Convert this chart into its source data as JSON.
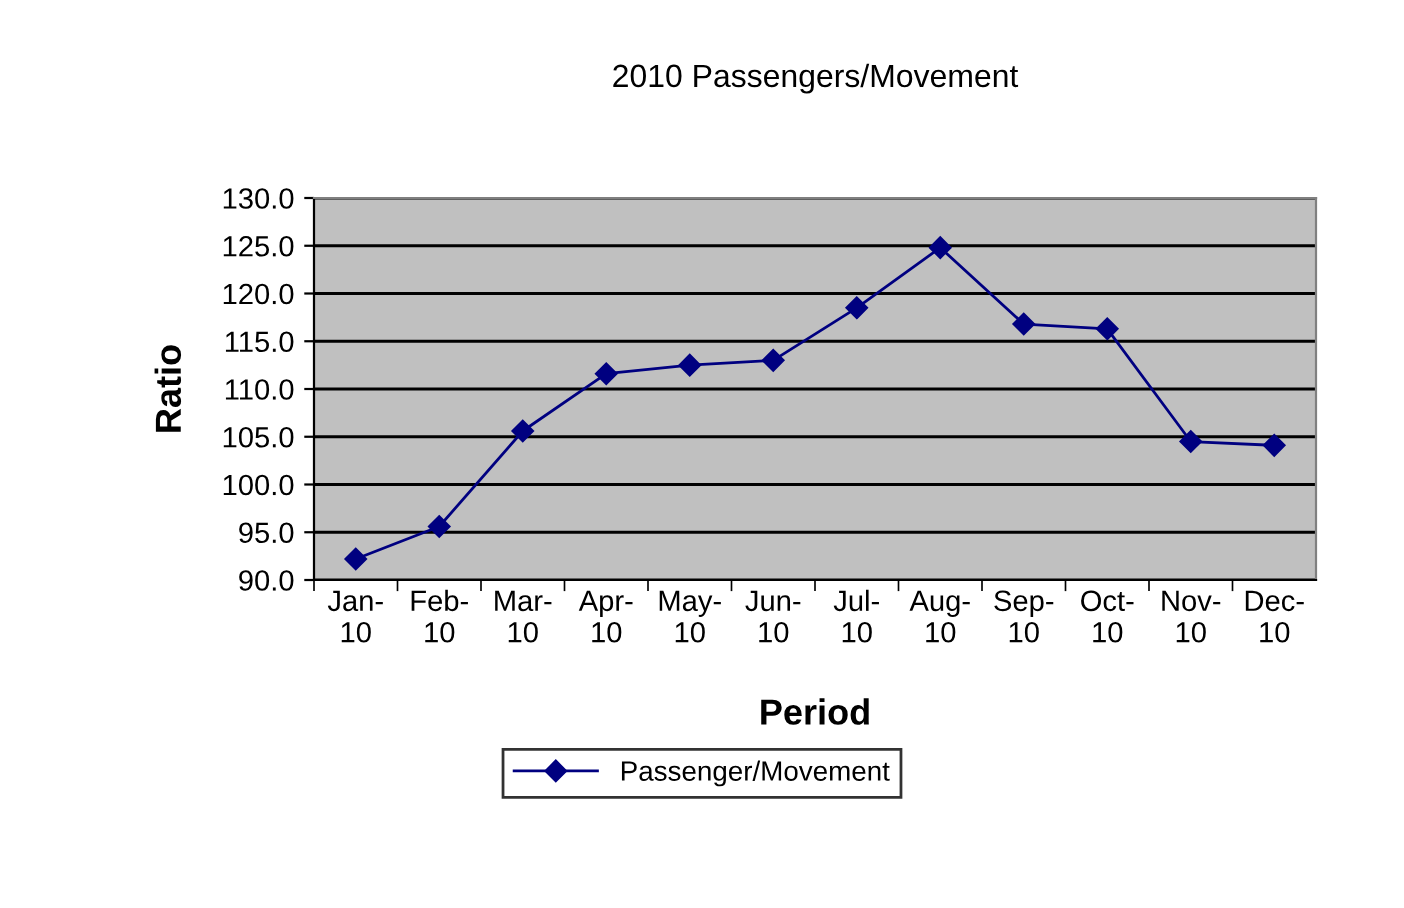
{
  "chart_data": {
    "type": "line",
    "title": "2010 Passengers/Movement",
    "xlabel": "Period",
    "ylabel": "Ratio",
    "categories": [
      "Jan-10",
      "Feb-10",
      "Mar-10",
      "Apr-10",
      "May-10",
      "Jun-10",
      "Jul-10",
      "Aug-10",
      "Sep-10",
      "Oct-10",
      "Nov-10",
      "Dec-10"
    ],
    "series": [
      {
        "name": "Passenger/Movement",
        "color": "#000080",
        "values": [
          92.2,
          95.6,
          105.6,
          111.6,
          112.5,
          113.0,
          118.5,
          124.8,
          116.8,
          116.3,
          104.5,
          104.1
        ]
      }
    ],
    "ylim": [
      90,
      130
    ],
    "yticks": [
      {
        "value": 90,
        "label": "90.0"
      },
      {
        "value": 95,
        "label": "95.0"
      },
      {
        "value": 100,
        "label": "100.0"
      },
      {
        "value": 105,
        "label": "105.0"
      },
      {
        "value": 110,
        "label": "110.0"
      },
      {
        "value": 115,
        "label": "115.0"
      },
      {
        "value": 120,
        "label": "120.0"
      },
      {
        "value": 125,
        "label": "125.0"
      },
      {
        "value": 130,
        "label": "130.0"
      }
    ],
    "grid": "y",
    "legend": "bottom",
    "marker": "diamond",
    "line_style": "solid"
  }
}
